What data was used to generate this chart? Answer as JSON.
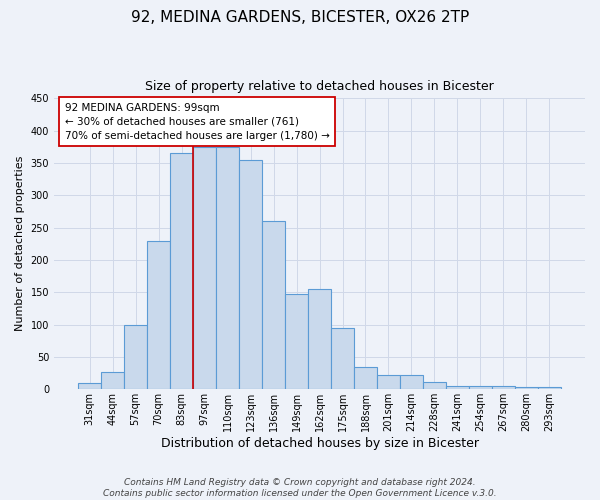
{
  "title": "92, MEDINA GARDENS, BICESTER, OX26 2TP",
  "subtitle": "Size of property relative to detached houses in Bicester",
  "xlabel": "Distribution of detached houses by size in Bicester",
  "ylabel": "Number of detached properties",
  "bar_labels": [
    "31sqm",
    "44sqm",
    "57sqm",
    "70sqm",
    "83sqm",
    "97sqm",
    "110sqm",
    "123sqm",
    "136sqm",
    "149sqm",
    "162sqm",
    "175sqm",
    "188sqm",
    "201sqm",
    "214sqm",
    "228sqm",
    "241sqm",
    "254sqm",
    "267sqm",
    "280sqm",
    "293sqm"
  ],
  "bar_values": [
    10,
    27,
    100,
    230,
    365,
    375,
    375,
    355,
    260,
    147,
    155,
    95,
    34,
    22,
    22,
    11,
    5,
    5,
    5,
    3,
    3
  ],
  "bar_color": "#c9d9ec",
  "bar_edge_color": "#5b9bd5",
  "grid_color": "#d0d8e8",
  "background_color": "#eef2f9",
  "ylim": [
    0,
    450
  ],
  "vline_color": "#cc0000",
  "annotation_text": "92 MEDINA GARDENS: 99sqm\n← 30% of detached houses are smaller (761)\n70% of semi-detached houses are larger (1,780) →",
  "annotation_box_color": "#ffffff",
  "annotation_box_edge": "#cc0000",
  "footer_text": "Contains HM Land Registry data © Crown copyright and database right 2024.\nContains public sector information licensed under the Open Government Licence v.3.0.",
  "title_fontsize": 11,
  "subtitle_fontsize": 9,
  "ylabel_fontsize": 8,
  "xlabel_fontsize": 9,
  "tick_fontsize": 7,
  "footer_fontsize": 6.5,
  "annotation_fontsize": 7.5
}
